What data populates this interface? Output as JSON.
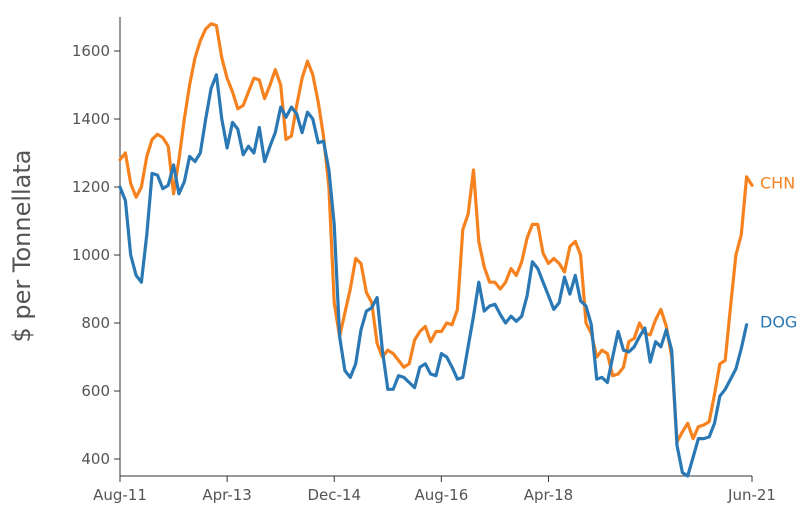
{
  "chart_data": {
    "type": "line",
    "title": "",
    "xlabel": "",
    "ylabel": "$ per Tonnellata",
    "ylim": [
      350,
      1700
    ],
    "yticks": [
      400,
      600,
      800,
      1000,
      1200,
      1400,
      1600
    ],
    "x_ticks": [
      {
        "date": "2011-08",
        "label": "Aug-11"
      },
      {
        "date": "2013-04",
        "label": "Apr-13"
      },
      {
        "date": "2014-12",
        "label": "Dec-14"
      },
      {
        "date": "2016-08",
        "label": "Aug-16"
      },
      {
        "date": "2018-04",
        "label": "Apr-18"
      },
      {
        "date": "2021-06",
        "label": "Jun-21"
      }
    ],
    "xlim": [
      "2011-08",
      "2021-06"
    ],
    "grid": false,
    "legend": "inline labels at right end of lines",
    "series": [
      {
        "name": "CHN",
        "color": "#f5821f",
        "points": [
          [
            "2011-08",
            1280
          ],
          [
            "2011-09",
            1300
          ],
          [
            "2011-10",
            1210
          ],
          [
            "2011-11",
            1170
          ],
          [
            "2011-12",
            1200
          ],
          [
            "2012-01",
            1290
          ],
          [
            "2012-02",
            1340
          ],
          [
            "2012-03",
            1355
          ],
          [
            "2012-04",
            1345
          ],
          [
            "2012-05",
            1320
          ],
          [
            "2012-06",
            1180
          ],
          [
            "2012-07",
            1280
          ],
          [
            "2012-08",
            1400
          ],
          [
            "2012-09",
            1500
          ],
          [
            "2012-10",
            1580
          ],
          [
            "2012-11",
            1630
          ],
          [
            "2012-12",
            1665
          ],
          [
            "2013-01",
            1680
          ],
          [
            "2013-02",
            1675
          ],
          [
            "2013-03",
            1580
          ],
          [
            "2013-04",
            1520
          ],
          [
            "2013-05",
            1480
          ],
          [
            "2013-06",
            1430
          ],
          [
            "2013-07",
            1440
          ],
          [
            "2013-08",
            1480
          ],
          [
            "2013-09",
            1520
          ],
          [
            "2013-10",
            1515
          ],
          [
            "2013-11",
            1460
          ],
          [
            "2013-12",
            1500
          ],
          [
            "2014-01",
            1545
          ],
          [
            "2014-02",
            1500
          ],
          [
            "2014-03",
            1340
          ],
          [
            "2014-04",
            1350
          ],
          [
            "2014-05",
            1440
          ],
          [
            "2014-06",
            1520
          ],
          [
            "2014-07",
            1570
          ],
          [
            "2014-08",
            1530
          ],
          [
            "2014-09",
            1450
          ],
          [
            "2014-10",
            1350
          ],
          [
            "2014-11",
            1200
          ],
          [
            "2014-12",
            860
          ],
          [
            "2015-01",
            760
          ],
          [
            "2015-02",
            830
          ],
          [
            "2015-03",
            900
          ],
          [
            "2015-04",
            990
          ],
          [
            "2015-05",
            975
          ],
          [
            "2015-06",
            890
          ],
          [
            "2015-07",
            860
          ],
          [
            "2015-08",
            740
          ],
          [
            "2015-09",
            700
          ],
          [
            "2015-10",
            720
          ],
          [
            "2015-11",
            710
          ],
          [
            "2015-12",
            690
          ],
          [
            "2016-01",
            670
          ],
          [
            "2016-02",
            680
          ],
          [
            "2016-03",
            750
          ],
          [
            "2016-04",
            775
          ],
          [
            "2016-05",
            790
          ],
          [
            "2016-06",
            745
          ],
          [
            "2016-07",
            775
          ],
          [
            "2016-08",
            775
          ],
          [
            "2016-09",
            800
          ],
          [
            "2016-10",
            795
          ],
          [
            "2016-11",
            840
          ],
          [
            "2016-12",
            1075
          ],
          [
            "2017-01",
            1120
          ],
          [
            "2017-02",
            1250
          ],
          [
            "2017-03",
            1040
          ],
          [
            "2017-04",
            965
          ],
          [
            "2017-05",
            920
          ],
          [
            "2017-06",
            920
          ],
          [
            "2017-07",
            900
          ],
          [
            "2017-08",
            920
          ],
          [
            "2017-09",
            960
          ],
          [
            "2017-10",
            940
          ],
          [
            "2017-11",
            980
          ],
          [
            "2017-12",
            1050
          ],
          [
            "2018-01",
            1090
          ],
          [
            "2018-02",
            1090
          ],
          [
            "2018-03",
            1005
          ],
          [
            "2018-04",
            975
          ],
          [
            "2018-05",
            990
          ],
          [
            "2018-06",
            975
          ],
          [
            "2018-07",
            950
          ],
          [
            "2018-08",
            1025
          ],
          [
            "2018-09",
            1040
          ],
          [
            "2018-10",
            1000
          ],
          [
            "2018-11",
            800
          ],
          [
            "2018-12",
            770
          ],
          [
            "2019-01",
            700
          ],
          [
            "2019-02",
            720
          ],
          [
            "2019-03",
            710
          ],
          [
            "2019-04",
            645
          ],
          [
            "2019-05",
            650
          ],
          [
            "2019-06",
            670
          ],
          [
            "2019-07",
            745
          ],
          [
            "2019-08",
            755
          ],
          [
            "2019-09",
            800
          ],
          [
            "2019-10",
            770
          ],
          [
            "2019-11",
            765
          ],
          [
            "2019-12",
            810
          ],
          [
            "2020-01",
            840
          ],
          [
            "2020-02",
            790
          ],
          [
            "2020-03",
            700
          ],
          [
            "2020-04",
            450
          ],
          [
            "2020-05",
            480
          ],
          [
            "2020-06",
            505
          ],
          [
            "2020-07",
            460
          ],
          [
            "2020-08",
            495
          ],
          [
            "2020-09",
            500
          ],
          [
            "2020-10",
            510
          ],
          [
            "2020-11",
            590
          ],
          [
            "2020-12",
            680
          ],
          [
            "2021-01",
            690
          ],
          [
            "2021-02",
            850
          ],
          [
            "2021-03",
            1000
          ],
          [
            "2021-04",
            1060
          ],
          [
            "2021-05",
            1230
          ],
          [
            "2021-06",
            1205
          ]
        ]
      },
      {
        "name": "DOG",
        "color": "#2a78b4",
        "points": [
          [
            "2011-08",
            1200
          ],
          [
            "2011-09",
            1160
          ],
          [
            "2011-10",
            1000
          ],
          [
            "2011-11",
            940
          ],
          [
            "2011-12",
            920
          ],
          [
            "2012-01",
            1060
          ],
          [
            "2012-02",
            1240
          ],
          [
            "2012-03",
            1235
          ],
          [
            "2012-04",
            1195
          ],
          [
            "2012-05",
            1205
          ],
          [
            "2012-06",
            1265
          ],
          [
            "2012-07",
            1180
          ],
          [
            "2012-08",
            1215
          ],
          [
            "2012-09",
            1290
          ],
          [
            "2012-10",
            1275
          ],
          [
            "2012-11",
            1300
          ],
          [
            "2012-12",
            1400
          ],
          [
            "2013-01",
            1490
          ],
          [
            "2013-02",
            1530
          ],
          [
            "2013-03",
            1400
          ],
          [
            "2013-04",
            1315
          ],
          [
            "2013-05",
            1390
          ],
          [
            "2013-06",
            1370
          ],
          [
            "2013-07",
            1295
          ],
          [
            "2013-08",
            1320
          ],
          [
            "2013-09",
            1300
          ],
          [
            "2013-10",
            1375
          ],
          [
            "2013-11",
            1275
          ],
          [
            "2013-12",
            1320
          ],
          [
            "2014-01",
            1360
          ],
          [
            "2014-02",
            1435
          ],
          [
            "2014-03",
            1405
          ],
          [
            "2014-04",
            1435
          ],
          [
            "2014-05",
            1415
          ],
          [
            "2014-06",
            1360
          ],
          [
            "2014-07",
            1420
          ],
          [
            "2014-08",
            1400
          ],
          [
            "2014-09",
            1330
          ],
          [
            "2014-10",
            1335
          ],
          [
            "2014-11",
            1250
          ],
          [
            "2014-12",
            1090
          ],
          [
            "2015-01",
            760
          ],
          [
            "2015-02",
            660
          ],
          [
            "2015-03",
            640
          ],
          [
            "2015-04",
            680
          ],
          [
            "2015-05",
            780
          ],
          [
            "2015-06",
            835
          ],
          [
            "2015-07",
            845
          ],
          [
            "2015-08",
            875
          ],
          [
            "2015-09",
            720
          ],
          [
            "2015-10",
            605
          ],
          [
            "2015-11",
            605
          ],
          [
            "2015-12",
            645
          ],
          [
            "2016-01",
            640
          ],
          [
            "2016-02",
            625
          ],
          [
            "2016-03",
            610
          ],
          [
            "2016-04",
            670
          ],
          [
            "2016-05",
            680
          ],
          [
            "2016-06",
            650
          ],
          [
            "2016-07",
            645
          ],
          [
            "2016-08",
            710
          ],
          [
            "2016-09",
            700
          ],
          [
            "2016-10",
            670
          ],
          [
            "2016-11",
            635
          ],
          [
            "2016-12",
            640
          ],
          [
            "2017-01",
            730
          ],
          [
            "2017-02",
            820
          ],
          [
            "2017-03",
            920
          ],
          [
            "2017-04",
            835
          ],
          [
            "2017-05",
            850
          ],
          [
            "2017-06",
            855
          ],
          [
            "2017-07",
            825
          ],
          [
            "2017-08",
            800
          ],
          [
            "2017-09",
            820
          ],
          [
            "2017-10",
            805
          ],
          [
            "2017-11",
            820
          ],
          [
            "2017-12",
            880
          ],
          [
            "2018-01",
            980
          ],
          [
            "2018-02",
            960
          ],
          [
            "2018-03",
            920
          ],
          [
            "2018-04",
            880
          ],
          [
            "2018-05",
            840
          ],
          [
            "2018-06",
            860
          ],
          [
            "2018-07",
            935
          ],
          [
            "2018-08",
            885
          ],
          [
            "2018-09",
            940
          ],
          [
            "2018-10",
            865
          ],
          [
            "2018-11",
            850
          ],
          [
            "2018-12",
            795
          ],
          [
            "2019-01",
            635
          ],
          [
            "2019-02",
            640
          ],
          [
            "2019-03",
            625
          ],
          [
            "2019-04",
            700
          ],
          [
            "2019-05",
            775
          ],
          [
            "2019-06",
            720
          ],
          [
            "2019-07",
            715
          ],
          [
            "2019-08",
            730
          ],
          [
            "2019-09",
            760
          ],
          [
            "2019-10",
            785
          ],
          [
            "2019-11",
            685
          ],
          [
            "2019-12",
            745
          ],
          [
            "2020-01",
            730
          ],
          [
            "2020-02",
            780
          ],
          [
            "2020-03",
            720
          ],
          [
            "2020-04",
            440
          ],
          [
            "2020-05",
            360
          ],
          [
            "2020-06",
            350
          ],
          [
            "2020-07",
            405
          ],
          [
            "2020-08",
            460
          ],
          [
            "2020-09",
            460
          ],
          [
            "2020-10",
            465
          ],
          [
            "2020-11",
            505
          ],
          [
            "2020-12",
            585
          ],
          [
            "2021-01",
            605
          ],
          [
            "2021-02",
            635
          ],
          [
            "2021-03",
            665
          ],
          [
            "2021-04",
            725
          ],
          [
            "2021-05",
            795
          ]
        ]
      }
    ]
  }
}
